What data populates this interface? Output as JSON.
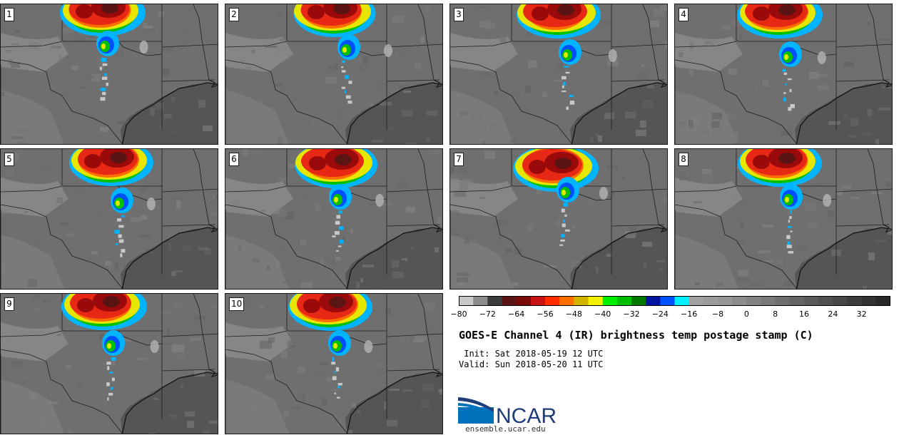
{
  "panels": [
    {
      "label": "1"
    },
    {
      "label": "2"
    },
    {
      "label": "3"
    },
    {
      "label": "4"
    },
    {
      "label": "5"
    },
    {
      "label": "6"
    },
    {
      "label": "7"
    },
    {
      "label": "8"
    },
    {
      "label": "9"
    },
    {
      "label": "10"
    }
  ],
  "colorbar": {
    "min": -80,
    "max": 40,
    "step": 4,
    "tick_labels": [
      "−80",
      "−72",
      "−64",
      "−56",
      "−48",
      "−40",
      "−32",
      "−24",
      "−16",
      "−8",
      "0",
      "8",
      "16",
      "24",
      "32"
    ],
    "colors": [
      "#c8c8c8",
      "#8c8c8c",
      "#3c3c3c",
      "#5a1414",
      "#780a0a",
      "#c81414",
      "#ff2d00",
      "#ff6e00",
      "#d2b400",
      "#f0f000",
      "#00f000",
      "#00be00",
      "#007800",
      "#0014a0",
      "#0050ff",
      "#00f0ff",
      "#a0a0a0",
      "#9b9b9b",
      "#969696",
      "#8c8c8c",
      "#828282",
      "#787878",
      "#6e6e6e",
      "#646464",
      "#5a5a5a",
      "#505050",
      "#464646",
      "#3c3c3c",
      "#323232",
      "#282828"
    ]
  },
  "title": "GOES-E Channel 4 (IR) brightness temp postage stamp (C)",
  "init_line": " Init: Sat 2018-05-19 12 UTC",
  "valid_line": "Valid: Sun 2018-05-20 11 UTC",
  "logo": {
    "text": "NCAR",
    "colors": {
      "blue": "#0072bc",
      "navy": "#1e3c78"
    }
  },
  "website": "ensemble.ucar.edu"
}
